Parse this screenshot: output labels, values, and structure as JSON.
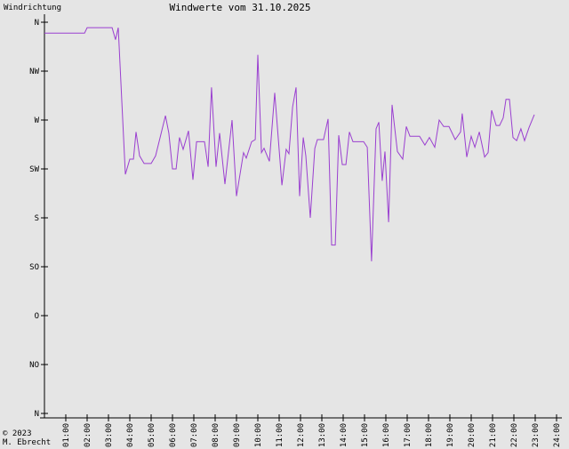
{
  "chart_data": {
    "type": "line",
    "title": "Windwerte vom 31.10.2025",
    "y_label": "Windrichtung",
    "footer": [
      "© 2023",
      "M. Ebrecht"
    ],
    "xlim": [
      0,
      24
    ],
    "ylim": [
      0,
      360
    ],
    "xticks": [
      {
        "value": 1,
        "label": "01:00"
      },
      {
        "value": 2,
        "label": "02:00"
      },
      {
        "value": 3,
        "label": "03:00"
      },
      {
        "value": 4,
        "label": "04:00"
      },
      {
        "value": 5,
        "label": "05:00"
      },
      {
        "value": 6,
        "label": "06:00"
      },
      {
        "value": 7,
        "label": "07:00"
      },
      {
        "value": 8,
        "label": "08:00"
      },
      {
        "value": 9,
        "label": "09:00"
      },
      {
        "value": 10,
        "label": "10:00"
      },
      {
        "value": 11,
        "label": "11:00"
      },
      {
        "value": 12,
        "label": "12:00"
      },
      {
        "value": 13,
        "label": "13:00"
      },
      {
        "value": 14,
        "label": "14:00"
      },
      {
        "value": 15,
        "label": "15:00"
      },
      {
        "value": 16,
        "label": "16:00"
      },
      {
        "value": 17,
        "label": "17:00"
      },
      {
        "value": 18,
        "label": "18:00"
      },
      {
        "value": 19,
        "label": "19:00"
      },
      {
        "value": 20,
        "label": "20:00"
      },
      {
        "value": 21,
        "label": "21:00"
      },
      {
        "value": 22,
        "label": "22:00"
      },
      {
        "value": 23,
        "label": "23:00"
      },
      {
        "value": 24,
        "label": "24:00"
      }
    ],
    "yticks": [
      {
        "value": 0,
        "label": "N"
      },
      {
        "value": 45,
        "label": "NO"
      },
      {
        "value": 90,
        "label": "O"
      },
      {
        "value": 135,
        "label": "SO"
      },
      {
        "value": 180,
        "label": "S"
      },
      {
        "value": 225,
        "label": "SW"
      },
      {
        "value": 270,
        "label": "W"
      },
      {
        "value": 315,
        "label": "NW"
      },
      {
        "value": 360,
        "label": "N"
      }
    ],
    "color": "#9a3fd0",
    "x": [
      0,
      1.88,
      2.0,
      3.17,
      3.33,
      3.46,
      3.79,
      4.0,
      4.17,
      4.29,
      4.46,
      4.67,
      5.0,
      5.21,
      5.42,
      5.67,
      5.83,
      6.0,
      6.17,
      6.33,
      6.5,
      6.75,
      6.96,
      7.13,
      7.5,
      7.67,
      7.83,
      8.04,
      8.21,
      8.46,
      8.79,
      9.0,
      9.33,
      9.46,
      9.71,
      9.88,
      10.0,
      10.17,
      10.29,
      10.54,
      10.79,
      11.13,
      11.33,
      11.46,
      11.63,
      11.79,
      11.96,
      12.13,
      12.25,
      12.46,
      12.67,
      12.79,
      13.08,
      13.29,
      13.46,
      13.63,
      13.79,
      13.96,
      14.13,
      14.29,
      14.46,
      14.75,
      14.96,
      15.13,
      15.33,
      15.54,
      15.67,
      15.83,
      15.96,
      16.13,
      16.29,
      16.54,
      16.79,
      16.96,
      17.13,
      17.58,
      17.83,
      18.04,
      18.29,
      18.5,
      18.71,
      18.96,
      19.25,
      19.5,
      19.58,
      19.79,
      20.0,
      20.17,
      20.38,
      20.63,
      20.79,
      20.96,
      21.17,
      21.33,
      21.5,
      21.63,
      21.79,
      21.96,
      22.13,
      22.33,
      22.5,
      22.71,
      22.96
    ],
    "values": [
      350,
      350,
      355,
      355,
      344,
      355,
      220,
      234,
      234,
      259,
      237,
      230,
      230,
      237,
      254,
      274,
      258,
      225,
      225,
      254,
      243,
      260,
      215,
      250,
      250,
      227,
      300,
      227,
      258,
      211,
      270,
      200,
      240,
      235,
      250,
      252,
      330,
      240,
      244,
      232,
      295,
      210,
      243,
      239,
      282,
      300,
      200,
      254,
      237,
      180,
      244,
      252,
      252,
      271,
      155,
      155,
      256,
      229,
      229,
      259,
      250,
      250,
      250,
      245,
      140,
      262,
      268,
      214,
      241,
      176,
      284,
      241,
      234,
      264,
      255,
      255,
      247,
      254,
      245,
      270,
      264,
      264,
      252,
      259,
      276,
      236,
      255,
      245,
      259,
      236,
      240,
      279,
      265,
      265,
      272,
      289,
      289,
      254,
      251,
      262,
      251,
      263,
      275
    ]
  }
}
